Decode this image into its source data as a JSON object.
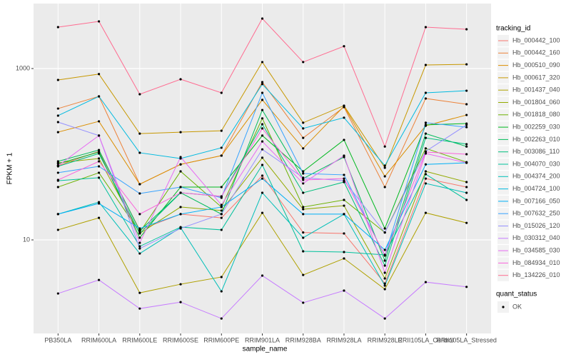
{
  "chart_data": {
    "type": "line",
    "x_label": "sample_name",
    "y_label": "FPKM + 1",
    "log_y": true,
    "grid": true,
    "categories": [
      "PB350LA",
      "RRIM600LA",
      "RRIM600LE",
      "RRIM600SE",
      "RRIM600PE",
      "RRIM901LA",
      "RRIM928BA",
      "RRIM928LA",
      "RRIM928LE",
      "RRII105LA_Control",
      "RRII105LA_Stressed"
    ],
    "ylim": [
      0.81,
      5730
    ],
    "yticks": [
      10,
      1000
    ],
    "legend_title": "tracking_id",
    "legend_position": "right",
    "point_color": "#000000",
    "status_legend": {
      "title": "quant_status",
      "items": [
        "OK"
      ]
    },
    "series": [
      {
        "name": "Hb_000442_100",
        "color": "#F8766D",
        "values": [
          73.6,
          108,
          13.1,
          20,
          18.1,
          56.2,
          12.2,
          11.9,
          3.1,
          52,
          41.4
        ]
      },
      {
        "name": "Hb_000442_160",
        "color": "#EC8239",
        "values": [
          341,
          473,
          44.7,
          76.1,
          96.3,
          695,
          155,
          355,
          41.4,
          447,
          383
        ]
      },
      {
        "name": "Hb_000510_090",
        "color": "#DB8E00",
        "values": [
          181,
          242,
          44.7,
          76.1,
          96.3,
          431,
          117,
          363,
          55.2,
          215,
          287
        ]
      },
      {
        "name": "Hb_000617_320",
        "color": "#C79800",
        "values": [
          736,
          861,
          174,
          181,
          188,
          1190,
          233,
          369,
          69.5,
          1100,
          1120
        ]
      },
      {
        "name": "Hb_001437_040",
        "color": "#AFA100",
        "values": [
          13.1,
          18.1,
          2.41,
          3.04,
          3.69,
          20.7,
          3.9,
          6.07,
          2.66,
          20.7,
          15.8
        ]
      },
      {
        "name": "Hb_001804_060",
        "color": "#93AA00",
        "values": [
          79.4,
          89.1,
          11.9,
          24.2,
          22,
          91,
          22.8,
          25.1,
          3.55,
          63.1,
          47.3
        ]
      },
      {
        "name": "Hb_001818_080",
        "color": "#6BB100",
        "values": [
          41.4,
          60.8,
          12.3,
          63.1,
          24.2,
          262,
          24.2,
          29.3,
          12.2,
          117,
          80.9
        ]
      },
      {
        "name": "Hb_002259_030",
        "color": "#00B81F",
        "values": [
          77.6,
          106,
          10.6,
          41.4,
          41.4,
          165,
          63.1,
          147,
          13.6,
          220,
          228
        ]
      },
      {
        "name": "Hb_002263_010",
        "color": "#00BC59",
        "values": [
          82.5,
          112,
          12.8,
          35.5,
          20,
          328,
          52,
          92.7,
          5.73,
          174,
          123
        ]
      },
      {
        "name": "Hb_003086_110",
        "color": "#00BF7D",
        "values": [
          72.2,
          102,
          11.9,
          35.5,
          32.2,
          224,
          35.5,
          47.3,
          5.01,
          155,
          131
        ]
      },
      {
        "name": "Hb_004070_030",
        "color": "#00C19C",
        "values": [
          49.1,
          53.2,
          8.41,
          14.1,
          13.1,
          75,
          7.36,
          7.22,
          6.68,
          58.5,
          29.3
        ]
      },
      {
        "name": "Hb_004374_200",
        "color": "#00BFB8",
        "values": [
          20,
          27.6,
          6.94,
          13.9,
          2.51,
          35.5,
          10.6,
          20,
          2.93,
          45.6,
          35.5
        ]
      },
      {
        "name": "Hb_004724_100",
        "color": "#00BAE0",
        "values": [
          282,
          473,
          104,
          89.1,
          119,
          658,
          200,
          267,
          73.6,
          521,
          551
        ]
      },
      {
        "name": "Hb_007166_050",
        "color": "#00B0F6",
        "values": [
          20,
          26.6,
          13.6,
          20,
          24.2,
          52,
          20,
          20,
          7.64,
          76.1,
          79.4
        ]
      },
      {
        "name": "Hb_007632_250",
        "color": "#35A2FF",
        "values": [
          60.8,
          72.2,
          34.8,
          41.4,
          31,
          521,
          59.6,
          57.4,
          6.55,
          233,
          207
        ]
      },
      {
        "name": "Hb_015026_120",
        "color": "#9590FF",
        "values": [
          237,
          165,
          7.94,
          13.6,
          20,
          114,
          53.2,
          49.1,
          12.2,
          108,
          220
        ]
      },
      {
        "name": "Hb_030312_040",
        "color": "#C77CFF",
        "values": [
          2.37,
          3.41,
          1.58,
          1.88,
          1.21,
          3.83,
          1.85,
          2.56,
          1.21,
          3.22,
          2.83
        ]
      },
      {
        "name": "Hb_034585_030",
        "color": "#E76BF3",
        "values": [
          73.6,
          165,
          9.24,
          92.7,
          25.6,
          141,
          45.6,
          96.3,
          4.14,
          102,
          79.4
        ]
      },
      {
        "name": "Hb_084934_010",
        "color": "#FA62DB",
        "values": [
          50.1,
          82.5,
          20,
          35.5,
          32.2,
          200,
          50.1,
          52,
          6.68,
          106,
          100
        ]
      },
      {
        "name": "Hb_134226_010",
        "color": "#FF6C91",
        "values": [
          3040,
          3550,
          501,
          750,
          521,
          3830,
          1190,
          1820,
          123,
          3040,
          2870
        ]
      }
    ]
  }
}
